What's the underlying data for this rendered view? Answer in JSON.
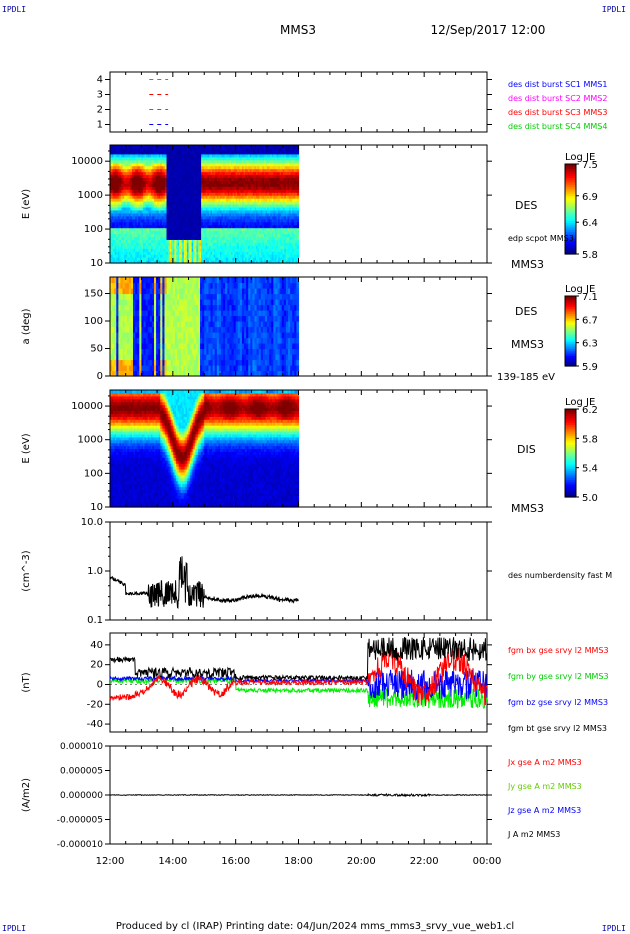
{
  "header": {
    "corner_left": "IPDLI",
    "corner_right": "IPDLI",
    "corner_bottom_left": "IPDLI",
    "corner_bottom_right": "IPDLI",
    "spacecraft": "MMS3",
    "datetime": "12/Sep/2017 12:00"
  },
  "footer": {
    "credit": "Produced by cl (IRAP)   Printing date: 04/Jun/2024   mms_mms3_srvy_vue_web1.cl"
  },
  "time_axis": {
    "ticks": [
      "12:00",
      "14:00",
      "16:00",
      "18:00",
      "20:00",
      "22:00",
      "00:00"
    ],
    "data_end": "18:00"
  },
  "chart_data": [
    {
      "type": "scatter",
      "name": "burst-intervals",
      "yticks": [
        "1",
        "2",
        "3",
        "4"
      ],
      "ylim": [
        0.5,
        4.5
      ],
      "series": [
        {
          "name": "des dist burst SC1 MMS1",
          "y": 1,
          "color": "#0000ff"
        },
        {
          "name": "des dist burst SC2 MMS2",
          "y": 2,
          "color": "#ff00ff"
        },
        {
          "name": "des dist burst SC3 MMS3",
          "y": 3,
          "color": "#ff0000"
        },
        {
          "name": "des dist burst SC4 MMS4",
          "y": 4,
          "color": "#00cc00"
        }
      ],
      "labels": [
        "des dist burst SC1 MMS1",
        "des dist burst SC2 MMS2",
        "des dist burst SC3 MMS3",
        "des dist burst SC4 MMS4"
      ]
    },
    {
      "type": "heatmap",
      "name": "des-energy-spectrogram",
      "ylabel": "E (eV)",
      "yscale": "log",
      "ylim": [
        10,
        30000
      ],
      "yticks": [
        "10",
        "100",
        "1000",
        "10000"
      ],
      "instrument": "DES",
      "sc": "MMS3",
      "overlay": "edp scpot MMS3",
      "colorbar": {
        "title": "Log JE",
        "ticks": [
          "5.8",
          "6.4",
          "6.9",
          "7.5"
        ],
        "range": [
          5.8,
          7.5
        ]
      }
    },
    {
      "type": "heatmap",
      "name": "des-pitch-angle",
      "ylabel": "a (deg)",
      "ylim": [
        0,
        180
      ],
      "yticks": [
        "0",
        "50",
        "100",
        "150"
      ],
      "instrument": "DES",
      "sc": "MMS3",
      "energy_range": "139-185 eV",
      "colorbar": {
        "title": "Log JE",
        "ticks": [
          "5.9",
          "6.3",
          "6.7",
          "7.1"
        ],
        "range": [
          5.9,
          7.1
        ]
      }
    },
    {
      "type": "heatmap",
      "name": "dis-energy-spectrogram",
      "ylabel": "E (eV)",
      "yscale": "log",
      "ylim": [
        10,
        30000
      ],
      "yticks": [
        "10",
        "100",
        "1000",
        "10000"
      ],
      "instrument": "DIS",
      "sc": "MMS3",
      "colorbar": {
        "title": "Log JE",
        "ticks": [
          "5.0",
          "5.4",
          "5.8",
          "6.2"
        ],
        "range": [
          5.0,
          6.2
        ]
      }
    },
    {
      "type": "line",
      "name": "density",
      "ylabel": "(cm^-3)",
      "yscale": "log",
      "ylim": [
        0.1,
        10
      ],
      "yticks": [
        "0.1",
        "1.0",
        "10.0"
      ],
      "series": [
        {
          "name": "des numberdensity fast M",
          "color": "#000000"
        }
      ],
      "label": "des numberdensity fast M"
    },
    {
      "type": "line",
      "name": "magnetic-field",
      "ylabel": "(nT)",
      "ylim": [
        -48,
        52
      ],
      "yticks": [
        "-40",
        "-20",
        "0",
        "20",
        "40"
      ],
      "series": [
        {
          "name": "fgm bx gse srvy l2 MMS3",
          "color": "#ff0000"
        },
        {
          "name": "fgm by gse srvy l2 MMS3",
          "color": "#00ee00"
        },
        {
          "name": "fgm bz gse srvy l2 MMS3",
          "color": "#0000ff"
        },
        {
          "name": "fgm bt gse srvy l2 MMS3",
          "color": "#000000"
        }
      ]
    },
    {
      "type": "line",
      "name": "current-density",
      "ylabel": "(A/m2)",
      "ylim": [
        -1e-05,
        1e-05
      ],
      "yticks": [
        "0.000010",
        "0.000005",
        "0.000000",
        "-0.000005",
        "-0.000010"
      ],
      "series": [
        {
          "name": "Jx gse A m2 MMS3",
          "color": "#ff0000"
        },
        {
          "name": "Jy gse A m2 MMS3",
          "color": "#66cc00"
        },
        {
          "name": "Jz gse A m2 MMS3",
          "color": "#0000ff"
        },
        {
          "name": "J A m2 MMS3",
          "color": "#000000"
        }
      ]
    }
  ]
}
